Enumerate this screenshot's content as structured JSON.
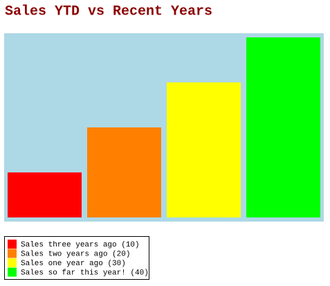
{
  "chart_data": {
    "type": "bar",
    "title": "Sales YTD vs Recent Years",
    "categories": [
      "Sales three years ago (10)",
      "Sales two years ago (20)",
      "Sales one year ago (30)",
      "Sales so far this year! (40)"
    ],
    "values": [
      10,
      20,
      30,
      40
    ],
    "colors": [
      "#ff0000",
      "#ff8000",
      "#ffff00",
      "#00ff00"
    ],
    "background": "#add8e6"
  }
}
